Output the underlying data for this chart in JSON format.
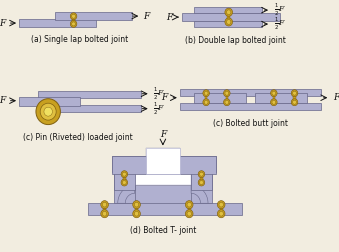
{
  "plate_color": "#b0b0d0",
  "plate_edge": "#666688",
  "bolt_outer": "#c8a020",
  "bolt_inner": "#e0c040",
  "bolt_dark": "#806010",
  "white_fill": "#ffffff",
  "bg_color": "#f2ede0",
  "arrow_color": "#111111",
  "text_color": "#111111",
  "label_a": "(a) Single lap bolted joint",
  "label_b": "(b) Double lap bolted joint",
  "label_c1": "(c) Pin (Riveted) loaded joint",
  "label_c2": "(c) Bolted butt joint",
  "label_d": "(d) Bolted T- joint",
  "title_fontsize": 5.5,
  "force_fontsize": 6.5
}
